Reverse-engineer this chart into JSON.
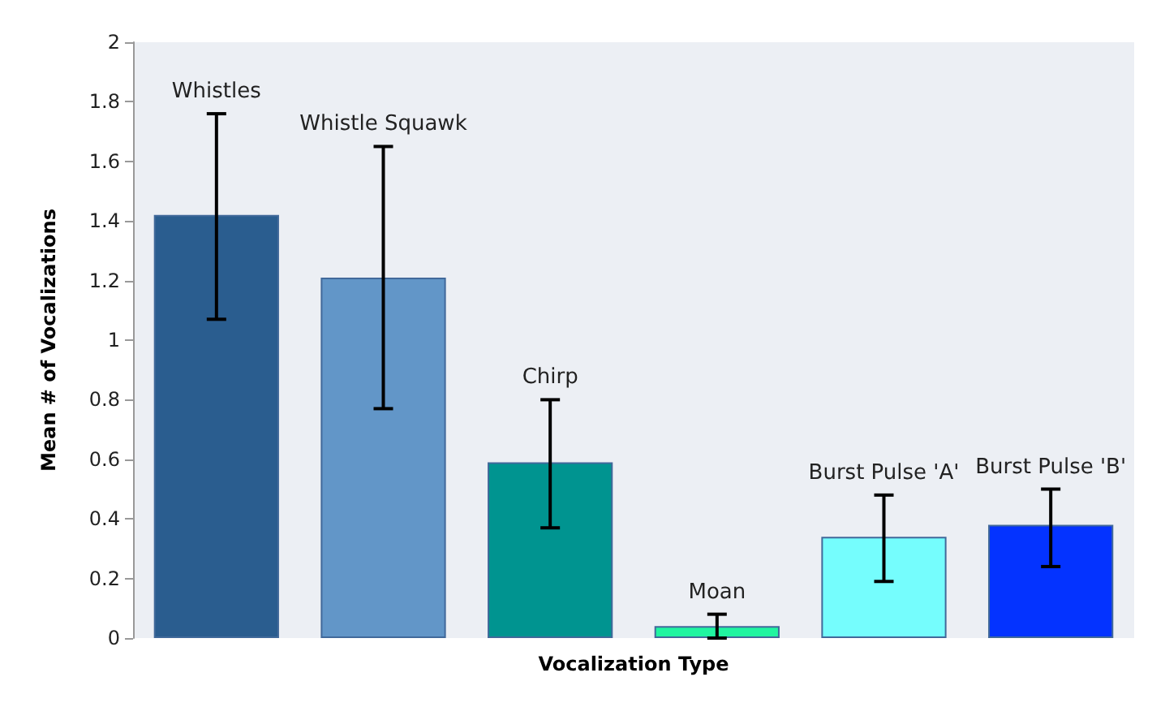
{
  "chart_data": {
    "type": "bar",
    "xlabel": "Vocalization Type",
    "ylabel": "Mean # of Vocalizations",
    "categories": [
      "Whistles",
      "Whistle Squawk",
      "Chirp",
      "Moan",
      "Burst Pulse 'A'",
      "Burst Pulse 'B'"
    ],
    "values": [
      1.42,
      1.21,
      0.59,
      0.04,
      0.34,
      0.38
    ],
    "errors": [
      [
        1.07,
        1.76
      ],
      [
        0.77,
        1.65
      ],
      [
        0.37,
        0.8
      ],
      [
        0.0,
        0.08
      ],
      [
        0.19,
        0.48
      ],
      [
        0.24,
        0.5
      ]
    ],
    "colors": [
      "#2a5d8f",
      "#6296c8",
      "#009490",
      "#20f5a0",
      "#75fdfd",
      "#0433ff"
    ],
    "ylim": [
      0,
      2
    ],
    "yticks": [
      0,
      0.2,
      0.4,
      0.6,
      0.8,
      1,
      1.2,
      1.4,
      1.6,
      1.8,
      2
    ],
    "grid": false
  }
}
